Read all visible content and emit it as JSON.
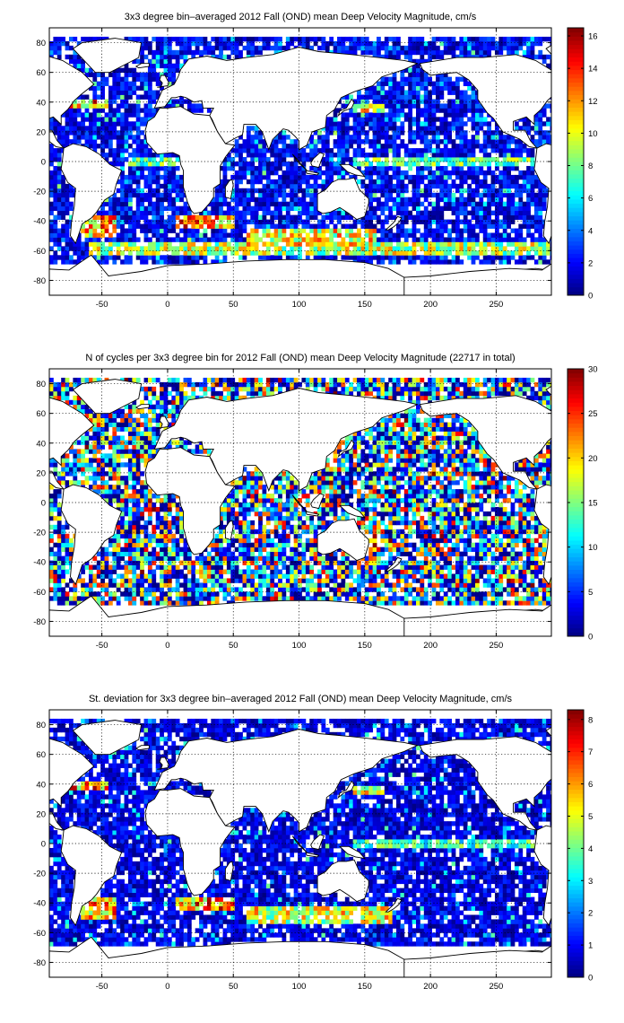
{
  "chart_data": [
    {
      "type": "heatmap",
      "title": "3x3 degree bin–averaged 2012 Fall (OND) mean Deep Velocity Magnitude, cm/s",
      "xlabel": "",
      "ylabel": "",
      "xlim": [
        -90,
        292
      ],
      "ylim": [
        -90,
        90
      ],
      "xticks": [
        -50,
        0,
        50,
        100,
        150,
        200,
        250
      ],
      "yticks": [
        80,
        60,
        40,
        20,
        0,
        -20,
        -40,
        -60,
        -80
      ],
      "grid": true,
      "bin_size_deg": 3,
      "colormap": "jet",
      "colorbar": {
        "min": 0,
        "max": 16.5,
        "ticks": [
          16,
          14,
          12,
          10,
          8,
          6,
          4,
          2,
          0
        ]
      },
      "seed": 11,
      "typical_fraction": 0.22,
      "high_zones": [
        {
          "lon": [
            5,
            50
          ],
          "lat": [
            -45,
            -35
          ],
          "level": 0.85
        },
        {
          "lon": [
            -65,
            -40
          ],
          "lat": [
            -50,
            -35
          ],
          "level": 0.8
        },
        {
          "lon": [
            -75,
            -45
          ],
          "lat": [
            35,
            42
          ],
          "level": 0.85
        },
        {
          "lon": [
            60,
            160
          ],
          "lat": [
            -58,
            -45
          ],
          "level": 0.72
        },
        {
          "lon": [
            -60,
            290
          ],
          "lat": [
            -62,
            -55
          ],
          "level": 0.65
        },
        {
          "lon": [
            140,
            280
          ],
          "lat": [
            -3,
            3
          ],
          "level": 0.55
        },
        {
          "lon": [
            140,
            165
          ],
          "lat": [
            33,
            40
          ],
          "level": 0.7
        },
        {
          "lon": [
            -30,
            10
          ],
          "lat": [
            -3,
            3
          ],
          "level": 0.55
        }
      ]
    },
    {
      "type": "heatmap",
      "title": "N of cycles per 3x3 degree bin for 2012 Fall (OND) mean Deep Velocity Magnitude (22717 in total)",
      "xlabel": "",
      "ylabel": "",
      "xlim": [
        -90,
        292
      ],
      "ylim": [
        -90,
        90
      ],
      "xticks": [
        -50,
        0,
        50,
        100,
        150,
        200,
        250
      ],
      "yticks": [
        80,
        60,
        40,
        20,
        0,
        -20,
        -40,
        -60,
        -80
      ],
      "grid": true,
      "bin_size_deg": 3,
      "colormap": "jet",
      "total_cycles": 22717,
      "colorbar": {
        "min": 0,
        "max": 30,
        "ticks": [
          30,
          25,
          20,
          15,
          10,
          5,
          0
        ]
      },
      "seed": 23,
      "typical_fraction": 0.3,
      "high_zones": [
        {
          "lon": [
            140,
            200
          ],
          "lat": [
            15,
            45
          ],
          "level": 0.6
        },
        {
          "lon": [
            40,
            120
          ],
          "lat": [
            -55,
            -35
          ],
          "level": 0.5
        }
      ]
    },
    {
      "type": "heatmap",
      "title": "St. deviation for 3x3 degree bin–averaged 2012 Fall (OND) mean Deep Velocity Magnitude, cm/s",
      "xlabel": "",
      "ylabel": "",
      "xlim": [
        -90,
        292
      ],
      "ylim": [
        -90,
        90
      ],
      "xticks": [
        -50,
        0,
        50,
        100,
        150,
        200,
        250
      ],
      "yticks": [
        80,
        60,
        40,
        20,
        0,
        -20,
        -40,
        -60,
        -80
      ],
      "grid": true,
      "bin_size_deg": 3,
      "colormap": "jet",
      "colorbar": {
        "min": 0,
        "max": 8.3,
        "ticks": [
          8,
          7,
          6,
          5,
          4,
          3,
          2,
          1,
          0
        ]
      },
      "seed": 37,
      "typical_fraction": 0.18,
      "high_zones": [
        {
          "lon": [
            5,
            50
          ],
          "lat": [
            -45,
            -35
          ],
          "level": 0.85
        },
        {
          "lon": [
            -65,
            -40
          ],
          "lat": [
            -50,
            -35
          ],
          "level": 0.8
        },
        {
          "lon": [
            -75,
            -45
          ],
          "lat": [
            35,
            42
          ],
          "level": 0.85
        },
        {
          "lon": [
            60,
            170
          ],
          "lat": [
            -55,
            -43
          ],
          "level": 0.7
        },
        {
          "lon": [
            140,
            165
          ],
          "lat": [
            33,
            40
          ],
          "level": 0.7
        },
        {
          "lon": [
            140,
            280
          ],
          "lat": [
            -3,
            3
          ],
          "level": 0.5
        }
      ]
    }
  ]
}
